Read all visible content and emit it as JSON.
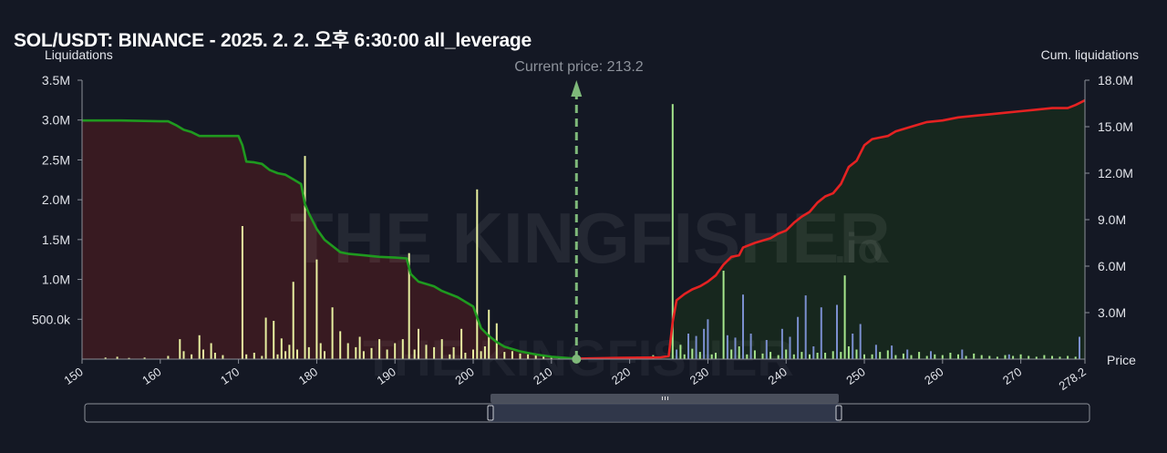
{
  "title": "SOL/USDT: BINANCE - 2025. 2. 2. 오후 6:30:00 all_leverage",
  "left_axis_title": "Liquidations",
  "right_axis_title": "Cum. liquidations",
  "x_axis_title": "Price",
  "current_price_label": "Current price: 213.2",
  "watermark_text": "THE KINGFISHER",
  "watermark_suffix": ".io",
  "colors": {
    "background": "#141824",
    "long_cum_line": "#1f9a1f",
    "short_cum_line": "#e52222",
    "long_fill": "#3a1a22",
    "short_fill": "#17281f",
    "long_bar": "#e8f0a0",
    "short_bar_green": "#a6e68c",
    "short_bar_blue": "#7b8fcf",
    "current_price_line": "#7fb97a"
  },
  "chart_data": {
    "type": "bar+area",
    "current_price": 213.2,
    "xlim": [
      150,
      278.2
    ],
    "x_ticks": [
      150,
      160,
      170,
      180,
      190,
      200,
      210,
      220,
      230,
      240,
      250,
      260,
      270,
      278.2
    ],
    "y_left": {
      "lim": [
        0,
        3500000
      ],
      "ticks": [
        500000,
        1000000,
        1500000,
        2000000,
        2500000,
        3000000,
        3500000
      ],
      "tick_labels": [
        "500.0k",
        "1.0M",
        "1.5M",
        "2.0M",
        "2.5M",
        "3.0M",
        "3.5M"
      ]
    },
    "y_right": {
      "lim": [
        0,
        18000000
      ],
      "ticks": [
        3000000,
        6000000,
        9000000,
        12000000,
        15000000,
        18000000
      ],
      "tick_labels": [
        "3.0M",
        "6.0M",
        "9.0M",
        "12.0M",
        "15.0M",
        "18.0M"
      ]
    },
    "long_liquidation_bars": [
      [
        153,
        20000
      ],
      [
        154.5,
        30000
      ],
      [
        156,
        15000
      ],
      [
        158,
        20000
      ],
      [
        161,
        40000
      ],
      [
        162.5,
        250000
      ],
      [
        163,
        100000
      ],
      [
        164,
        60000
      ],
      [
        165,
        300000
      ],
      [
        165.5,
        120000
      ],
      [
        166.5,
        200000
      ],
      [
        167,
        80000
      ],
      [
        168,
        50000
      ],
      [
        170.5,
        1670000
      ],
      [
        171,
        60000
      ],
      [
        172,
        80000
      ],
      [
        173,
        40000
      ],
      [
        173.5,
        520000
      ],
      [
        174.5,
        480000
      ],
      [
        175,
        60000
      ],
      [
        175.5,
        260000
      ],
      [
        176,
        100000
      ],
      [
        176.5,
        180000
      ],
      [
        177,
        970000
      ],
      [
        177.5,
        120000
      ],
      [
        178.5,
        2550000
      ],
      [
        179,
        150000
      ],
      [
        180,
        1250000
      ],
      [
        180.5,
        200000
      ],
      [
        181,
        100000
      ],
      [
        182,
        650000
      ],
      [
        183,
        350000
      ],
      [
        184,
        200000
      ],
      [
        185,
        150000
      ],
      [
        185.5,
        280000
      ],
      [
        186,
        100000
      ],
      [
        187,
        140000
      ],
      [
        188,
        250000
      ],
      [
        189,
        120000
      ],
      [
        190,
        200000
      ],
      [
        191,
        250000
      ],
      [
        191.8,
        1330000
      ],
      [
        192.5,
        120000
      ],
      [
        193,
        380000
      ],
      [
        194,
        180000
      ],
      [
        195,
        150000
      ],
      [
        196,
        250000
      ],
      [
        197,
        60000
      ],
      [
        197.5,
        150000
      ],
      [
        198.5,
        380000
      ],
      [
        199,
        80000
      ],
      [
        200,
        120000
      ],
      [
        200.5,
        2130000
      ],
      [
        201,
        100000
      ],
      [
        201.5,
        160000
      ],
      [
        202,
        620000
      ],
      [
        203,
        450000
      ],
      [
        204,
        90000
      ],
      [
        205,
        100000
      ],
      [
        206,
        70000
      ],
      [
        207,
        60000
      ],
      [
        208,
        50000
      ],
      [
        209,
        40000
      ],
      [
        210,
        30000
      ],
      [
        211,
        25000
      ],
      [
        212,
        20000
      ]
    ],
    "short_liquidation_bars_green": [
      [
        219,
        20000
      ],
      [
        221,
        30000
      ],
      [
        223,
        50000
      ],
      [
        225.5,
        3200000
      ],
      [
        226.5,
        180000
      ],
      [
        227,
        60000
      ],
      [
        228,
        130000
      ],
      [
        229,
        90000
      ],
      [
        230.5,
        60000
      ],
      [
        231,
        80000
      ],
      [
        232,
        1110000
      ],
      [
        233,
        120000
      ],
      [
        234,
        160000
      ],
      [
        235,
        60000
      ],
      [
        236,
        110000
      ],
      [
        237,
        70000
      ],
      [
        238,
        90000
      ],
      [
        239,
        50000
      ],
      [
        240,
        120000
      ],
      [
        241,
        60000
      ],
      [
        242,
        90000
      ],
      [
        243,
        60000
      ],
      [
        244,
        80000
      ],
      [
        245,
        80000
      ],
      [
        246,
        100000
      ],
      [
        247,
        90000
      ],
      [
        247.5,
        1050000
      ],
      [
        248,
        160000
      ],
      [
        249,
        120000
      ],
      [
        250,
        60000
      ],
      [
        251,
        60000
      ],
      [
        252,
        90000
      ],
      [
        253,
        110000
      ],
      [
        254,
        50000
      ],
      [
        255,
        70000
      ],
      [
        256,
        50000
      ],
      [
        257,
        90000
      ],
      [
        258,
        40000
      ],
      [
        259,
        60000
      ],
      [
        260,
        50000
      ],
      [
        261,
        80000
      ],
      [
        262,
        60000
      ],
      [
        263,
        40000
      ],
      [
        264,
        70000
      ],
      [
        265,
        50000
      ],
      [
        266,
        40000
      ],
      [
        267,
        30000
      ],
      [
        268,
        50000
      ],
      [
        269,
        40000
      ],
      [
        270,
        60000
      ],
      [
        271,
        40000
      ],
      [
        272,
        30000
      ],
      [
        273,
        50000
      ],
      [
        274,
        40000
      ],
      [
        275,
        30000
      ],
      [
        276,
        40000
      ],
      [
        277,
        30000
      ]
    ],
    "short_liquidation_bars_blue": [
      [
        226,
        120000
      ],
      [
        227.5,
        320000
      ],
      [
        228.5,
        290000
      ],
      [
        229.5,
        380000
      ],
      [
        230,
        500000
      ],
      [
        232.5,
        300000
      ],
      [
        233.5,
        270000
      ],
      [
        234.5,
        810000
      ],
      [
        235.5,
        320000
      ],
      [
        237.5,
        240000
      ],
      [
        239.5,
        380000
      ],
      [
        240.5,
        280000
      ],
      [
        241.5,
        530000
      ],
      [
        242.5,
        800000
      ],
      [
        243.5,
        160000
      ],
      [
        244.5,
        650000
      ],
      [
        246.5,
        680000
      ],
      [
        248.5,
        320000
      ],
      [
        249.5,
        440000
      ],
      [
        251.5,
        180000
      ],
      [
        253.5,
        170000
      ],
      [
        255.5,
        120000
      ],
      [
        258.5,
        100000
      ],
      [
        262.5,
        120000
      ],
      [
        268.5,
        60000
      ],
      [
        277.5,
        280000
      ]
    ],
    "long_cumulative": [
      [
        150,
        15400000
      ],
      [
        155,
        15400000
      ],
      [
        160,
        15350000
      ],
      [
        161,
        15350000
      ],
      [
        162,
        15100000
      ],
      [
        163,
        14800000
      ],
      [
        164,
        14650000
      ],
      [
        165,
        14400000
      ],
      [
        170,
        14400000
      ],
      [
        170.5,
        13800000
      ],
      [
        171,
        12750000
      ],
      [
        172,
        12700000
      ],
      [
        173,
        12600000
      ],
      [
        174,
        12200000
      ],
      [
        175,
        12000000
      ],
      [
        176,
        11900000
      ],
      [
        177,
        11600000
      ],
      [
        178,
        11300000
      ],
      [
        178.5,
        10000000
      ],
      [
        179,
        9400000
      ],
      [
        180,
        8400000
      ],
      [
        181,
        7700000
      ],
      [
        182,
        7300000
      ],
      [
        183,
        6900000
      ],
      [
        184,
        6800000
      ],
      [
        186,
        6700000
      ],
      [
        188,
        6600000
      ],
      [
        190,
        6550000
      ],
      [
        191.5,
        6500000
      ],
      [
        192,
        5500000
      ],
      [
        193,
        5000000
      ],
      [
        195,
        4700000
      ],
      [
        196,
        4400000
      ],
      [
        198,
        4000000
      ],
      [
        199,
        3700000
      ],
      [
        200,
        3400000
      ],
      [
        200.5,
        2700000
      ],
      [
        201,
        2000000
      ],
      [
        202,
        1500000
      ],
      [
        203,
        1100000
      ],
      [
        204,
        800000
      ],
      [
        206,
        500000
      ],
      [
        208,
        300000
      ],
      [
        210,
        150000
      ],
      [
        213.2,
        30000
      ]
    ],
    "short_cumulative": [
      [
        213.2,
        30000
      ],
      [
        216,
        60000
      ],
      [
        219,
        80000
      ],
      [
        222,
        100000
      ],
      [
        224,
        120000
      ],
      [
        225,
        200000
      ],
      [
        225.5,
        2400000
      ],
      [
        226,
        3800000
      ],
      [
        227,
        4200000
      ],
      [
        228,
        4500000
      ],
      [
        229,
        4700000
      ],
      [
        230,
        5000000
      ],
      [
        231,
        5400000
      ],
      [
        232,
        6100000
      ],
      [
        233,
        6600000
      ],
      [
        234,
        6700000
      ],
      [
        234.5,
        7200000
      ],
      [
        236,
        7500000
      ],
      [
        238,
        7800000
      ],
      [
        239,
        8100000
      ],
      [
        240,
        8300000
      ],
      [
        241,
        8800000
      ],
      [
        242,
        9200000
      ],
      [
        243,
        9500000
      ],
      [
        244,
        10100000
      ],
      [
        245,
        10500000
      ],
      [
        246,
        10700000
      ],
      [
        247,
        11300000
      ],
      [
        248,
        12400000
      ],
      [
        249,
        12800000
      ],
      [
        250,
        13800000
      ],
      [
        251,
        14200000
      ],
      [
        252,
        14300000
      ],
      [
        253,
        14400000
      ],
      [
        254,
        14700000
      ],
      [
        256,
        15000000
      ],
      [
        258,
        15300000
      ],
      [
        260,
        15400000
      ],
      [
        262,
        15600000
      ],
      [
        264,
        15700000
      ],
      [
        266,
        15800000
      ],
      [
        268,
        15900000
      ],
      [
        270,
        16000000
      ],
      [
        272,
        16100000
      ],
      [
        274,
        16200000
      ],
      [
        276,
        16200000
      ],
      [
        277,
        16400000
      ],
      [
        278.2,
        16700000
      ]
    ]
  }
}
